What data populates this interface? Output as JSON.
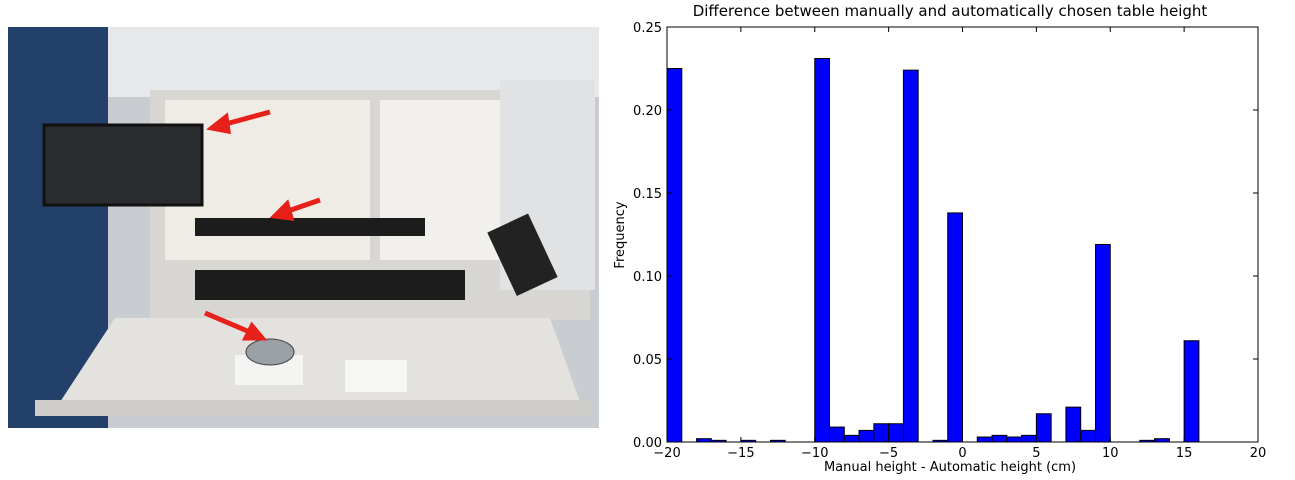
{
  "chart_data": {
    "type": "histogram",
    "title": "Difference between manually and automatically chosen table height",
    "x_label": "Manual height - Automatic height (cm)",
    "y_label": "Frequency",
    "color": "#0000ff",
    "bins": [
      -20,
      -19,
      -18,
      -17,
      -16,
      -15,
      -14,
      -13,
      -12,
      -11,
      -10,
      -9,
      -8,
      -7,
      -6,
      -5,
      -4,
      -3,
      -2,
      -1,
      0,
      1,
      2,
      3,
      4,
      5,
      6,
      7,
      8,
      9,
      10,
      11,
      12,
      13,
      14,
      15,
      16,
      17,
      18,
      19,
      20
    ],
    "values": [
      0.225,
      0,
      0.002,
      0.001,
      0,
      0.001,
      0,
      0.001,
      0,
      0,
      0.231,
      0.009,
      0.004,
      0.007,
      0.011,
      0.011,
      0.224,
      0,
      0.001,
      0.138,
      0,
      0.003,
      0.004,
      0.003,
      0.004,
      0.017,
      0,
      0.021,
      0.007,
      0.119,
      0,
      0,
      0.001,
      0.002,
      0,
      0.061,
      0,
      0,
      0,
      0
    ],
    "xlim": [
      -20,
      20
    ],
    "ylim": [
      0,
      0.25
    ],
    "xticks": [
      {
        "value": -20,
        "label": "−20"
      },
      {
        "value": -15,
        "label": "−15"
      },
      {
        "value": -10,
        "label": "−10"
      },
      {
        "value": -5,
        "label": "−5"
      },
      0,
      5,
      10,
      15,
      20
    ],
    "yticks": [
      {
        "value": 0,
        "label": "0.00"
      },
      {
        "value": 0.05,
        "label": "0.05"
      },
      {
        "value": 0.1,
        "label": "0.10"
      },
      {
        "value": 0.15,
        "label": "0.15"
      },
      {
        "value": 0.2,
        "label": "0.20"
      },
      {
        "value": 0.25,
        "label": "0.25"
      }
    ]
  }
}
